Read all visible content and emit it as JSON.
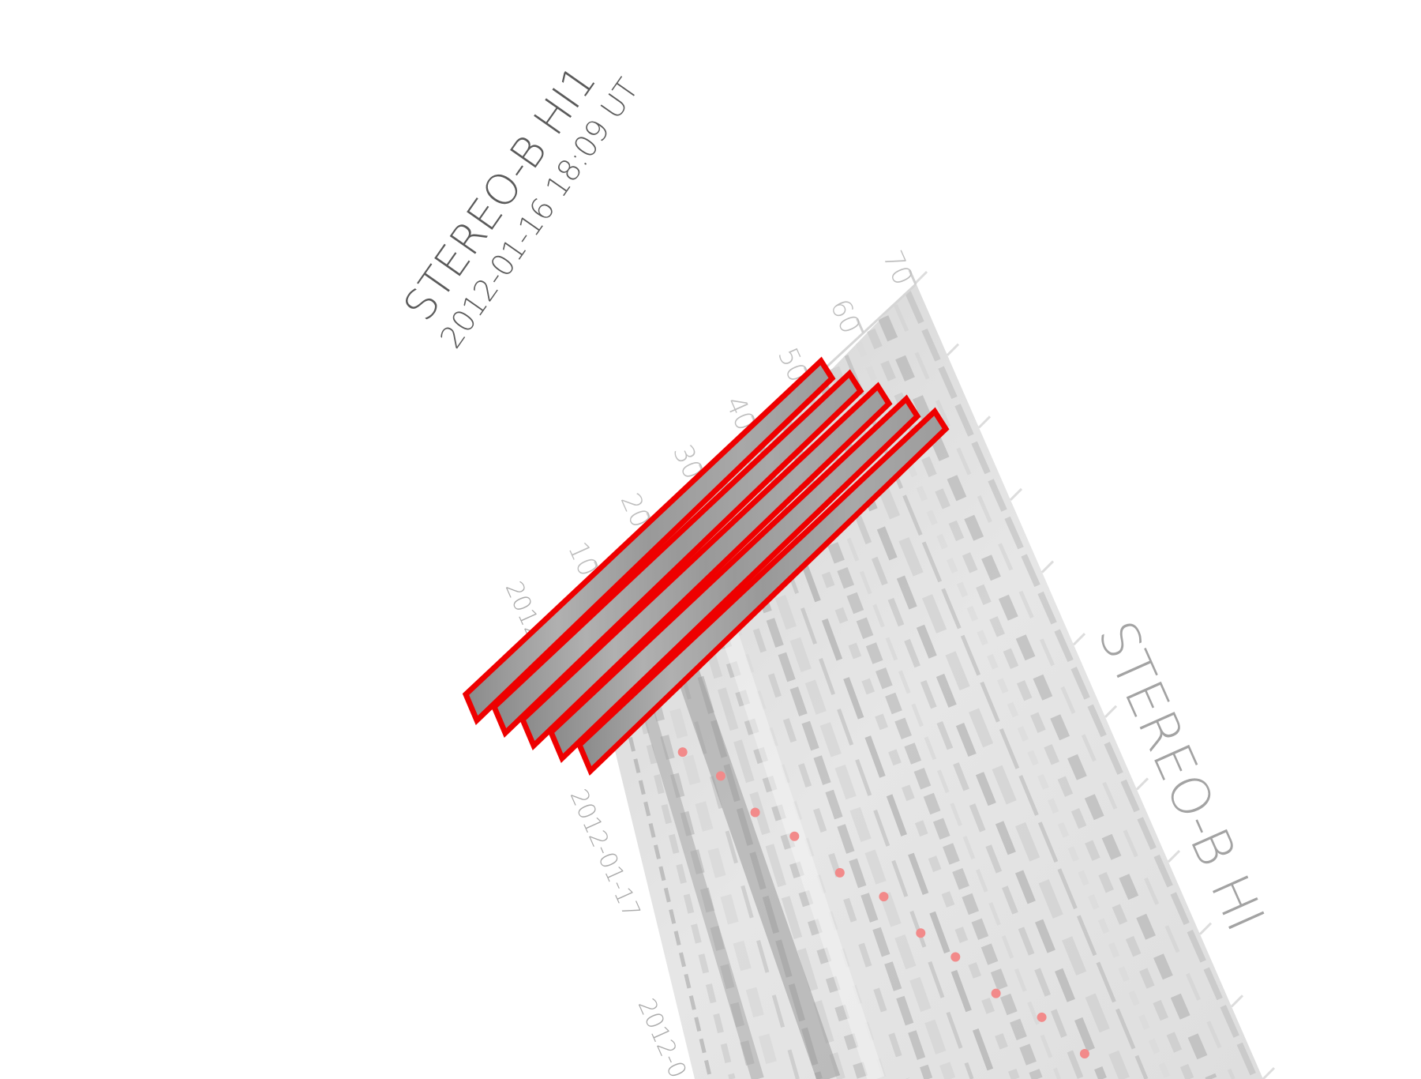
{
  "title": {
    "line1": "STEREO-B HI1",
    "line2": "2012-01-16 18:09 UT"
  },
  "panel_label": "STEREO-B HI",
  "colors": {
    "highlight": "#ee0000",
    "point": "#f28a8a",
    "panel": "#e4e4e4",
    "tick": "#bdbdbd"
  },
  "chart_data": {
    "type": "heatmap",
    "title": "STEREO-B HI1",
    "subtitle": "2012-01-16 18:09 UT",
    "panel_label": "STEREO-B HI",
    "elongation_axis": {
      "ticks": [
        "10",
        "20",
        "30",
        "40",
        "50",
        "60",
        "70"
      ],
      "range": [
        0,
        70
      ]
    },
    "time_axis": {
      "ticks": [
        "2012-",
        "2012-01-17",
        "2012-0"
      ]
    },
    "highlight_slices": 5,
    "track_points": 12
  }
}
